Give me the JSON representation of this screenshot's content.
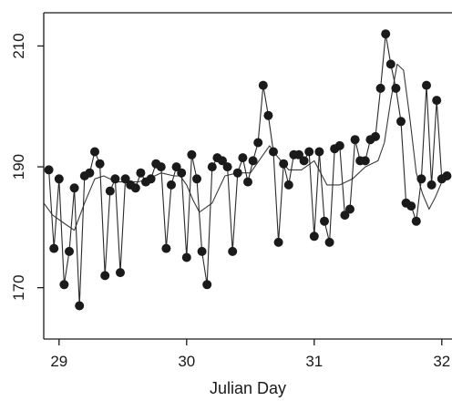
{
  "chart_data": {
    "type": "line",
    "title": "",
    "xlabel": "Julian Day",
    "ylabel": "",
    "xlim": [
      28.88,
      32.08
    ],
    "ylim": [
      161.5,
      215.5
    ],
    "x_ticks": [
      29,
      30,
      31,
      32
    ],
    "x_tick_labels": [
      "29",
      "30",
      "31",
      "32"
    ],
    "y_ticks": [
      170,
      190,
      210
    ],
    "y_tick_labels": [
      "170",
      "190",
      "210"
    ],
    "grid": false,
    "legend": "none",
    "colors": {
      "points": "#1a1a1a",
      "line": "#2a2a2a",
      "smooth": "#3a3a3a",
      "axis": "#1a1a1a"
    },
    "series": [
      {
        "style": "points+line",
        "x": [
          28.92,
          28.96,
          29.0,
          29.04,
          29.08,
          29.12,
          29.16,
          29.2,
          29.24,
          29.28,
          29.32,
          29.36,
          29.4,
          29.44,
          29.48,
          29.52,
          29.56,
          29.6,
          29.64,
          29.68,
          29.72,
          29.76,
          29.8,
          29.84,
          29.88,
          29.92,
          29.96,
          30.0,
          30.04,
          30.08,
          30.12,
          30.16,
          30.2,
          30.24,
          30.28,
          30.32,
          30.36,
          30.4,
          30.44,
          30.48,
          30.52,
          30.56,
          30.6,
          30.64,
          30.68,
          30.72,
          30.76,
          30.8,
          30.84,
          30.88,
          30.92,
          30.96,
          31.0,
          31.04,
          31.08,
          31.12,
          31.16,
          31.2,
          31.24,
          31.28,
          31.32,
          31.36,
          31.4,
          31.44,
          31.48,
          31.52,
          31.56,
          31.6,
          31.64,
          31.68,
          31.72,
          31.76,
          31.8,
          31.84,
          31.88,
          31.92,
          31.96,
          32.0,
          32.04
        ],
        "y": [
          189.5,
          176.5,
          188.0,
          170.5,
          176.0,
          186.5,
          167.0,
          188.5,
          189.0,
          192.5,
          190.5,
          172.0,
          186.0,
          188.0,
          172.5,
          188.0,
          187.0,
          186.5,
          189.0,
          187.5,
          188.0,
          190.5,
          190.0,
          176.5,
          187.0,
          190.0,
          189.0,
          175.0,
          192.0,
          188.0,
          176.0,
          170.5,
          190.0,
          191.5,
          191.0,
          190.0,
          176.0,
          189.0,
          191.5,
          187.5,
          191.0,
          194.0,
          203.5,
          198.5,
          192.5,
          177.5,
          190.5,
          187.0,
          192.0,
          192.0,
          191.0,
          192.5,
          178.5,
          192.5,
          181.0,
          177.5,
          193.0,
          193.5,
          182.0,
          183.0,
          194.5,
          191.0,
          191.0,
          194.5,
          195.0,
          203.0,
          212.0,
          207.0,
          203.0,
          197.5,
          184.0,
          183.5,
          181.0,
          188.0,
          203.5,
          187.0,
          201.0,
          188.0,
          188.5
        ]
      },
      {
        "style": "smooth",
        "x": [
          28.88,
          28.95,
          29.05,
          29.12,
          29.2,
          29.28,
          29.35,
          29.45,
          29.55,
          29.62,
          29.7,
          29.8,
          29.9,
          29.95,
          30.0,
          30.05,
          30.1,
          30.2,
          30.3,
          30.4,
          30.5,
          30.6,
          30.65,
          30.7,
          30.8,
          30.9,
          31.0,
          31.1,
          31.2,
          31.3,
          31.4,
          31.5,
          31.55,
          31.6,
          31.65,
          31.7,
          31.75,
          31.8,
          31.85,
          31.9,
          31.95,
          32.0,
          32.05
        ],
        "y": [
          184.0,
          182.0,
          180.5,
          179.5,
          184.0,
          188.0,
          188.5,
          187.5,
          187.5,
          187.5,
          188.0,
          189.0,
          188.5,
          188.5,
          187.0,
          184.5,
          182.5,
          184.0,
          188.5,
          189.0,
          189.0,
          192.0,
          193.5,
          192.0,
          189.5,
          189.5,
          191.0,
          187.0,
          187.0,
          188.0,
          190.0,
          191.0,
          194.0,
          201.0,
          207.0,
          206.0,
          198.0,
          189.0,
          185.5,
          183.0,
          185.0,
          187.5,
          188.0
        ]
      }
    ]
  }
}
